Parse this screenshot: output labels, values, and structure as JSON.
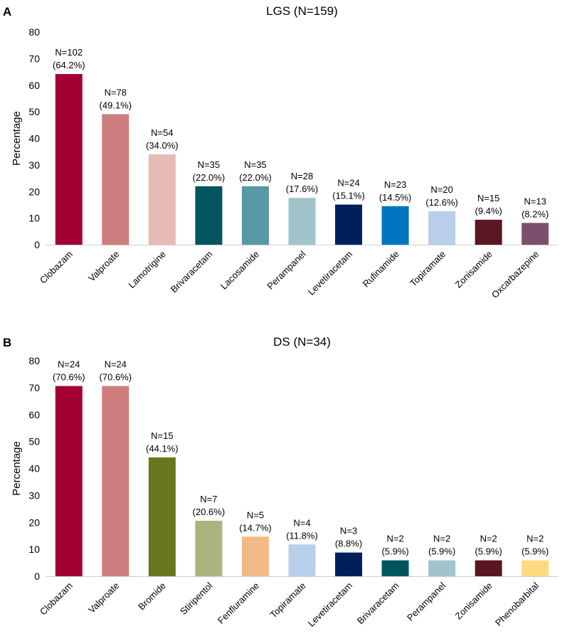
{
  "chart_data": [
    {
      "panel": "A",
      "type": "bar",
      "title": "LGS (N=159)",
      "xlabel": "",
      "ylabel": "Percentage",
      "ylim": [
        0,
        80
      ],
      "yticks": [
        0,
        10,
        20,
        30,
        40,
        50,
        60,
        70,
        80
      ],
      "grid": false,
      "categories": [
        "Clobazam",
        "Valproate",
        "Lamotrigine",
        "Brivaracetam",
        "Lacosamide",
        "Perampanel",
        "Levetiracetam",
        "Rufinamide",
        "Topiramate",
        "Zonisamide",
        "Oxcarbazepine"
      ],
      "values": [
        64.2,
        49.1,
        34.0,
        22.0,
        22.0,
        17.6,
        15.1,
        14.5,
        12.6,
        9.4,
        8.2
      ],
      "data_labels_n": [
        "N=102",
        "N=78",
        "N=54",
        "N=35",
        "N=35",
        "N=28",
        "N=24",
        "N=23",
        "N=20",
        "N=15",
        "N=13"
      ],
      "data_labels_pct": [
        "(64.2%)",
        "(49.1%)",
        "(34.0%)",
        "(22.0%)",
        "(22.0%)",
        "(17.6%)",
        "(15.1%)",
        "(14.5%)",
        "(12.6%)",
        "(9.4%)",
        "(8.2%)"
      ],
      "colors": [
        "#A50034",
        "#CE7E7E",
        "#E6BBB6",
        "#00555F",
        "#5799A6",
        "#A1C4CC",
        "#00205B",
        "#0076C0",
        "#B9CEEA",
        "#5A1622",
        "#7C4F6E"
      ]
    },
    {
      "panel": "B",
      "type": "bar",
      "title": "DS (N=34)",
      "xlabel": "",
      "ylabel": "Percentage",
      "ylim": [
        0,
        80
      ],
      "yticks": [
        0,
        10,
        20,
        30,
        40,
        50,
        60,
        70,
        80
      ],
      "grid": false,
      "categories": [
        "Clobazam",
        "Valproate",
        "Bromide",
        "Stiripentol",
        "Fenfluramine",
        "Topiramate",
        "Levetiracetam",
        "Brivaracetam",
        "Perampanel",
        "Zonisamide",
        "Phenobarbital"
      ],
      "values": [
        70.6,
        70.6,
        44.1,
        20.6,
        14.7,
        11.8,
        8.8,
        5.9,
        5.9,
        5.9,
        5.9
      ],
      "data_labels_n": [
        "N=24",
        "N=24",
        "N=15",
        "N=7",
        "N=5",
        "N=4",
        "N=3",
        "N=2",
        "N=2",
        "N=2",
        "N=2"
      ],
      "data_labels_pct": [
        "(70.6%)",
        "(70.6%)",
        "(44.1%)",
        "(20.6%)",
        "(14.7%)",
        "(11.8%)",
        "(8.8%)",
        "(5.9%)",
        "(5.9%)",
        "(5.9%)",
        "(5.9%)"
      ],
      "colors": [
        "#A50034",
        "#CE7E7E",
        "#69761E",
        "#AAB47C",
        "#F1B985",
        "#B9CEEA",
        "#00205B",
        "#00555F",
        "#A1C4CC",
        "#5A1622",
        "#FFDA80"
      ]
    }
  ]
}
